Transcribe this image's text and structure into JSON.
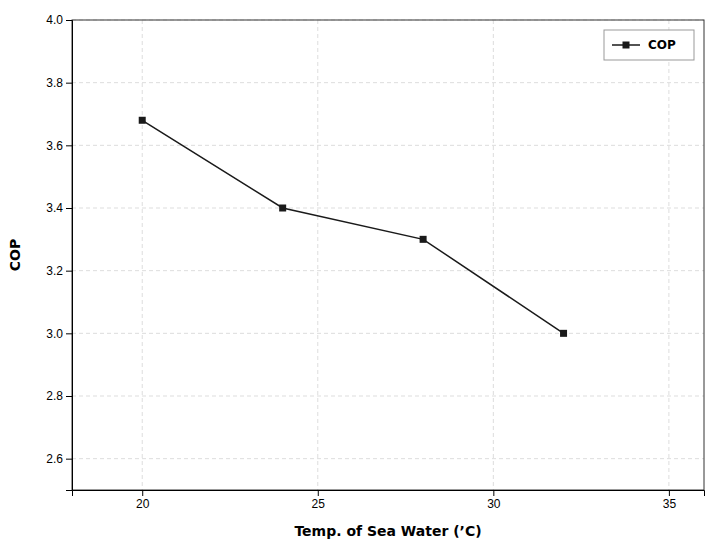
{
  "chart_data": {
    "type": "line",
    "x": [
      20,
      24,
      28,
      32
    ],
    "series": [
      {
        "name": "COP",
        "color": "#1a1a1a",
        "marker": "square",
        "values": [
          3.68,
          3.4,
          3.3,
          3.0
        ]
      }
    ],
    "xlabel": "Temp. of Sea Water (’C)",
    "ylabel": "COP",
    "xlim": [
      18,
      36
    ],
    "ylim": [
      2.5,
      4.0
    ],
    "xticks": [
      20,
      25,
      30,
      35
    ],
    "yticks": [
      2.6,
      2.8,
      {
        "value": 3.0,
        "label": "3.0"
      },
      3.2,
      3.4,
      3.6,
      3.8,
      {
        "value": 4.0,
        "label": "4.0"
      }
    ],
    "grid": true,
    "legend": "upper right"
  }
}
